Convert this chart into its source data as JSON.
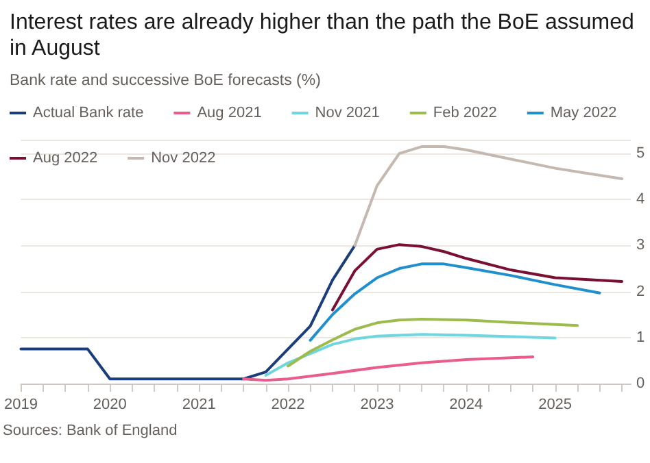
{
  "chart_data": {
    "type": "line",
    "title": "Interest rates are already higher than the path the BoE assumed in August",
    "subtitle": "Bank rate and successive BoE forecasts (%)",
    "annotations": [
      "Sources: Bank of England"
    ],
    "xlim": [
      2019,
      2025.85
    ],
    "xticks": [
      2019,
      {
        "value": 2019.25,
        "label": null
      },
      {
        "value": 2019.5,
        "label": null
      },
      {
        "value": 2019.75,
        "label": null
      },
      2020,
      {
        "value": 2020.25,
        "label": null
      },
      {
        "value": 2020.5,
        "label": null
      },
      {
        "value": 2020.75,
        "label": null
      },
      2021,
      {
        "value": 2021.25,
        "label": null
      },
      {
        "value": 2021.5,
        "label": null
      },
      {
        "value": 2021.75,
        "label": null
      },
      2022,
      {
        "value": 2022.25,
        "label": null
      },
      {
        "value": 2022.5,
        "label": null
      },
      {
        "value": 2022.75,
        "label": null
      },
      2023,
      {
        "value": 2023.25,
        "label": null
      },
      {
        "value": 2023.5,
        "label": null
      },
      {
        "value": 2023.75,
        "label": null
      },
      2024,
      {
        "value": 2024.25,
        "label": null
      },
      {
        "value": 2024.5,
        "label": null
      },
      {
        "value": 2024.75,
        "label": null
      },
      2025,
      {
        "value": 2025.25,
        "label": null
      },
      {
        "value": 2025.5,
        "label": null
      },
      {
        "value": 2025.75,
        "label": null
      }
    ],
    "ylim": [
      0,
      5.3
    ],
    "yticks": [
      0,
      1,
      2,
      3,
      4,
      5
    ],
    "grid": "y",
    "legend": "top",
    "marker": "none",
    "line_style": "solid",
    "series": [
      {
        "name": "Actual Bank rate",
        "color": "#1a3d7c",
        "x": [
          2019,
          2019.75,
          2020,
          2021.5,
          2021.75,
          2022,
          2022.25,
          2022.5,
          2022.75
        ],
        "values": [
          0.75,
          0.75,
          0.1,
          0.1,
          0.25,
          0.75,
          1.25,
          2.25,
          3.0
        ]
      },
      {
        "name": "Aug 2021",
        "color": "#e95d8c",
        "x": [
          2021.5,
          2021.75,
          2022,
          2022.5,
          2023,
          2023.5,
          2024,
          2024.75
        ],
        "values": [
          0.1,
          0.07,
          0.1,
          0.22,
          0.35,
          0.45,
          0.52,
          0.58
        ]
      },
      {
        "name": "Nov 2021",
        "color": "#6fd6e0",
        "x": [
          2021.75,
          2022,
          2022.5,
          2022.75,
          2023,
          2023.5,
          2024,
          2025
        ],
        "values": [
          0.18,
          0.45,
          0.85,
          0.97,
          1.03,
          1.07,
          1.05,
          0.99
        ]
      },
      {
        "name": "Feb 2022",
        "color": "#9dbb4c",
        "x": [
          2022,
          2022.25,
          2022.5,
          2022.75,
          2023,
          2023.25,
          2023.5,
          2024,
          2024.5,
          2025.25
        ],
        "values": [
          0.38,
          0.7,
          0.95,
          1.18,
          1.32,
          1.38,
          1.4,
          1.38,
          1.33,
          1.26
        ]
      },
      {
        "name": "May 2022",
        "color": "#208fce",
        "x": [
          2022.25,
          2022.5,
          2022.75,
          2023,
          2023.25,
          2023.5,
          2023.75,
          2024,
          2024.5,
          2025,
          2025.5
        ],
        "values": [
          0.94,
          1.5,
          1.95,
          2.3,
          2.5,
          2.6,
          2.6,
          2.52,
          2.35,
          2.15,
          1.97
        ]
      },
      {
        "name": "Aug 2022",
        "color": "#7a0e33",
        "x": [
          2022.5,
          2022.75,
          2023,
          2023.25,
          2023.5,
          2023.75,
          2024,
          2024.5,
          2025,
          2025.75
        ],
        "values": [
          1.6,
          2.45,
          2.92,
          3.02,
          2.98,
          2.87,
          2.72,
          2.47,
          2.3,
          2.22
        ]
      },
      {
        "name": "Nov 2022",
        "color": "#c4b8b0",
        "x": [
          2022.75,
          2023,
          2023.25,
          2023.5,
          2023.75,
          2024,
          2024.5,
          2025,
          2025.75
        ],
        "values": [
          3.0,
          4.3,
          5.0,
          5.15,
          5.15,
          5.08,
          4.88,
          4.68,
          4.45
        ]
      }
    ]
  }
}
